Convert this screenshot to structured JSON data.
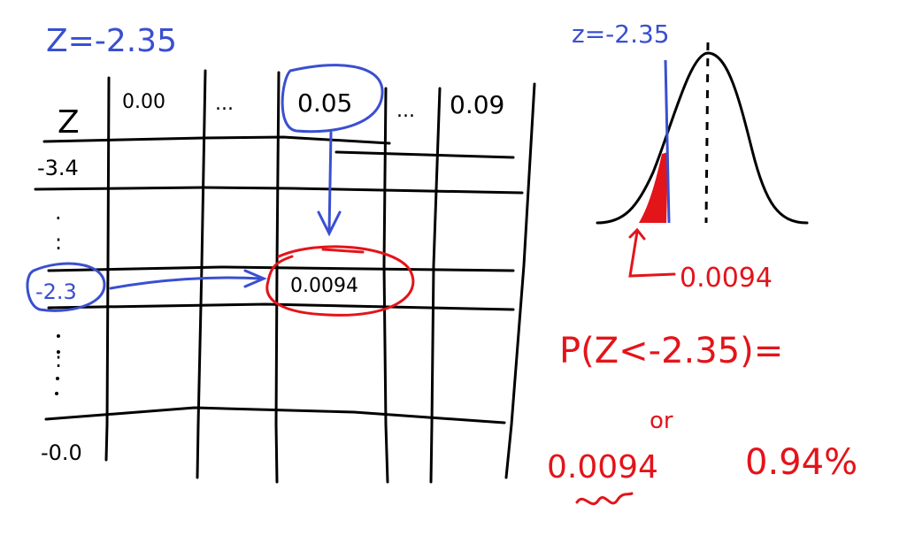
{
  "colors": {
    "ink": "#000000",
    "blue": "#3a4fd0",
    "red": "#e3141a"
  },
  "left": {
    "z_value_label": "Z=-2.35",
    "table": {
      "corner_label": "Z",
      "column_headers": [
        "0.00",
        "...",
        "0.05",
        "...",
        "0.09"
      ],
      "row_labels": [
        "-3.4",
        ".",
        ":",
        "-2.3",
        ":",
        "-0.0"
      ],
      "highlight_cell_value": "0.0094"
    }
  },
  "right": {
    "z_value_label": "z=-2.35",
    "tail_value": "0.0094",
    "probability_expression": "P(Z<-2.35)=",
    "connector": "or",
    "decimal_answer": "0.0094",
    "percent_answer": "0.94%"
  }
}
